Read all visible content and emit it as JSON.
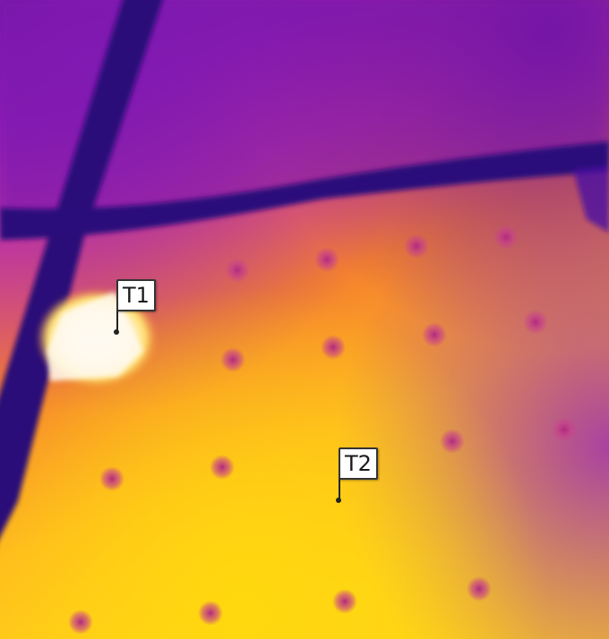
{
  "image": {
    "description_colors": {
      "cold": "#3a0a7a",
      "cool": "#8a1fb0",
      "mid": "#d83a80",
      "warm": "#f07a2a",
      "hot": "#ffd21a",
      "hottest": "#fff8e8"
    }
  },
  "markers": [
    {
      "label": "T1"
    },
    {
      "label": "T2"
    }
  ]
}
